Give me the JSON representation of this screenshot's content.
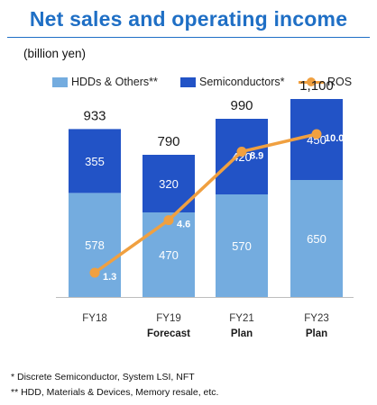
{
  "title": "Net sales and operating income",
  "unit_label": "(billion yen)",
  "legend": {
    "hdd": "HDDs & Others**",
    "semi": "Semiconductors*",
    "ros": "ROS"
  },
  "footnotes": [
    "* Discrete Semiconductor, System LSI, NFT",
    "** HDD, Materials & Devices, Memory resale, etc."
  ],
  "colors": {
    "hdd": "#74acdf",
    "semi": "#2253c6",
    "ros": "#f0a040",
    "title": "#1f6fc5"
  },
  "chart_data": {
    "type": "bar",
    "stacked": true,
    "categories": [
      "FY18",
      "FY19",
      "FY21",
      "FY23"
    ],
    "category_sublabels": [
      "",
      "Forecast",
      "Plan",
      "Plan"
    ],
    "series": [
      {
        "name": "HDDs & Others**",
        "values": [
          578,
          470,
          570,
          650
        ]
      },
      {
        "name": "Semiconductors*",
        "values": [
          355,
          320,
          420,
          450
        ]
      }
    ],
    "totals": [
      "933",
      "790",
      "990",
      "1,100"
    ],
    "line_series": {
      "name": "ROS",
      "values": [
        1.3,
        4.6,
        8.9,
        10.0
      ],
      "labels": [
        "1.3",
        "4.6",
        "8.9",
        "10.0"
      ]
    },
    "ylabel": "(billion yen)",
    "legend_position": "top",
    "grid": false
  }
}
